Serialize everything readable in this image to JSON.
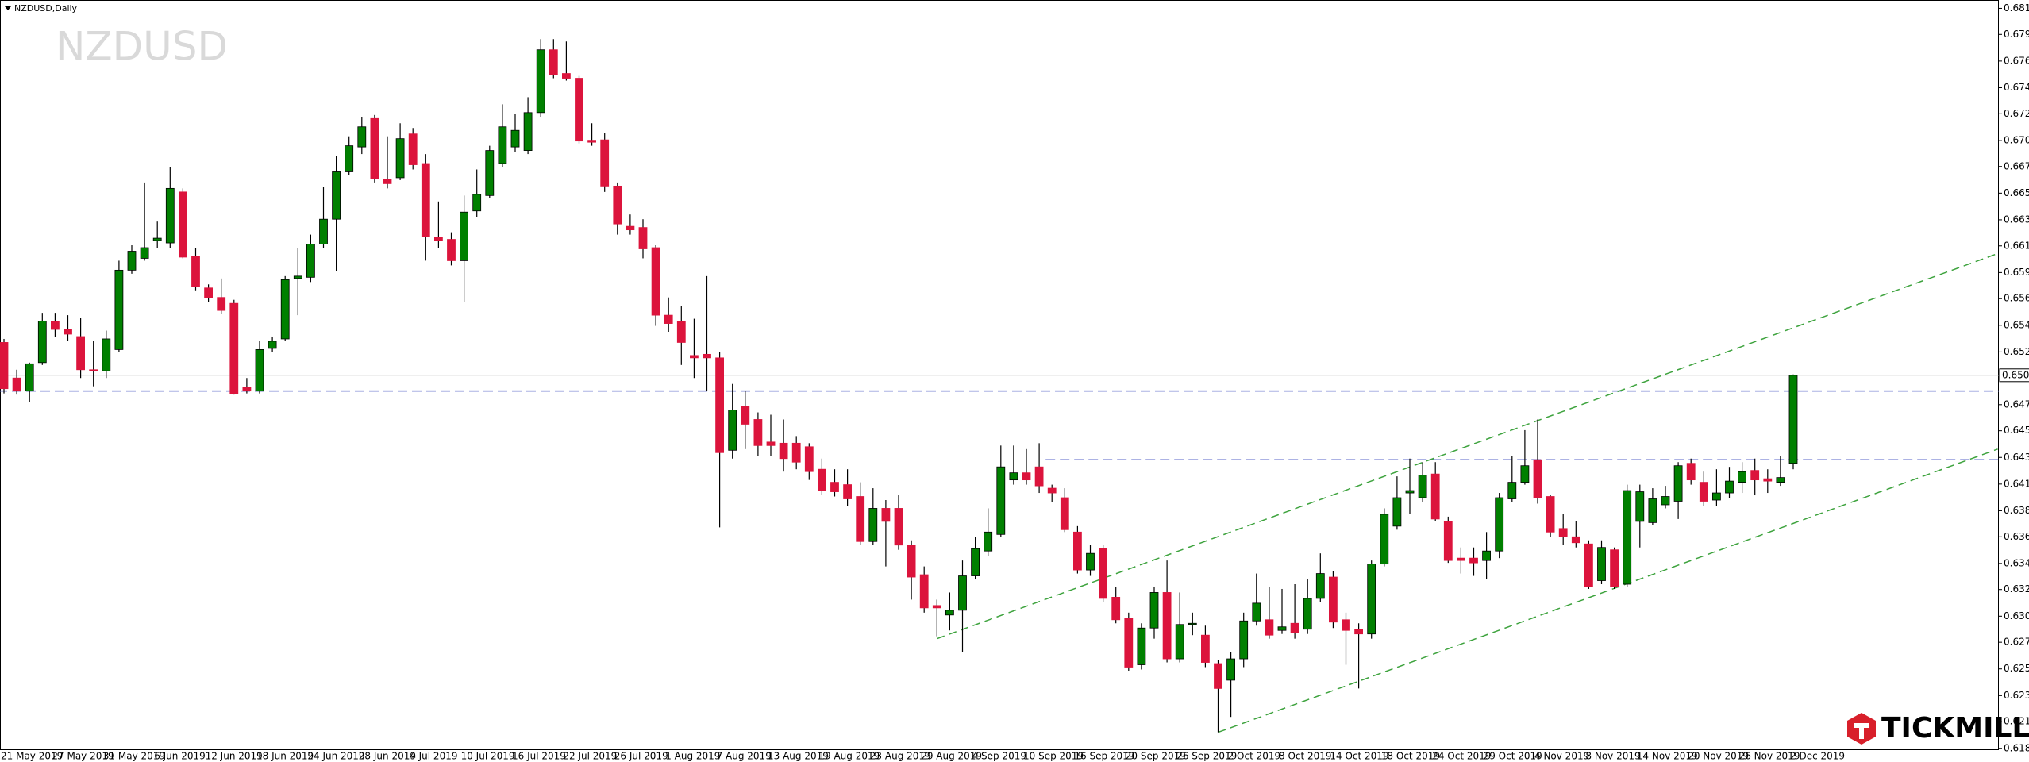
{
  "chart_data": {
    "type": "candlestick",
    "title": "NZDUSD,Daily",
    "watermark": "NZDUSD",
    "brand": "TICKMILL",
    "categories": [
      "21 May 2019",
      null,
      null,
      null,
      "27 May 2019",
      null,
      null,
      null,
      "31 May 2019",
      null,
      null,
      null,
      "6 Jun 2019",
      null,
      null,
      null,
      "12 Jun 2019",
      null,
      null,
      null,
      "18 Jun 2019",
      null,
      null,
      null,
      "24 Jun 2019",
      null,
      null,
      null,
      "28 Jun 2019",
      null,
      null,
      null,
      "4 Jul 2019",
      null,
      null,
      null,
      "10 Jul 2019",
      null,
      null,
      null,
      "16 Jul 2019",
      null,
      null,
      null,
      "22 Jul 2019",
      null,
      null,
      null,
      "26 Jul 2019",
      null,
      null,
      null,
      "1 Aug 2019",
      null,
      null,
      null,
      "7 Aug 2019",
      null,
      null,
      null,
      "13 Aug 2019",
      null,
      null,
      null,
      "19 Aug 2019",
      null,
      null,
      null,
      "23 Aug 2019",
      null,
      null,
      null,
      "29 Aug 2019",
      null,
      null,
      null,
      "4 Sep 2019",
      null,
      null,
      null,
      "10 Sep 2019",
      null,
      null,
      null,
      "16 Sep 2019",
      null,
      null,
      null,
      "20 Sep 2019",
      null,
      null,
      null,
      "26 Sep 2019",
      null,
      null,
      null,
      "2 Oct 2019",
      null,
      null,
      null,
      "8 Oct 2019",
      null,
      null,
      null,
      "14 Oct 2019",
      null,
      null,
      null,
      "18 Oct 2019",
      null,
      null,
      null,
      "24 Oct 2019",
      null,
      null,
      null,
      "29 Oct 2019",
      null,
      null,
      null,
      "4 Nov 2019",
      null,
      null,
      null,
      "8 Nov 2019",
      null,
      null,
      null,
      "14 Nov 2019",
      null,
      null,
      null,
      "20 Nov 2019",
      null,
      null,
      null,
      "26 Nov 2019",
      null,
      null,
      null,
      "2 Dec 2019"
    ],
    "open": [
      0.6531,
      0.6501,
      0.649,
      0.6514,
      0.6549,
      0.6542,
      0.6536,
      0.6508,
      0.6507,
      0.6525,
      0.6592,
      0.6602,
      0.6617,
      0.6615,
      0.6658,
      0.6604,
      0.6577,
      0.6569,
      0.6564,
      0.6493,
      0.649,
      0.6526,
      0.6534,
      0.6585,
      0.6586,
      0.6614,
      0.6635,
      0.6675,
      0.6696,
      0.672,
      0.6669,
      0.667,
      0.6707,
      0.6682,
      0.662,
      0.6618,
      0.66,
      0.6642,
      0.6655,
      0.6682,
      0.6696,
      0.6693,
      0.6725,
      0.6778,
      0.6758,
      0.6754,
      0.6701,
      0.6702,
      0.6663,
      0.6629,
      0.6628,
      0.6611,
      0.6554,
      0.6549,
      0.652,
      0.6521,
      0.6518,
      0.644,
      0.6477,
      0.6466,
      0.6447,
      0.6446,
      0.6446,
      0.6443,
      0.6424,
      0.6413,
      0.6411,
      0.6401,
      0.6363,
      0.6391,
      0.6391,
      0.636,
      0.6335,
      0.6309,
      0.6301,
      0.6305,
      0.6334,
      0.6355,
      0.6369,
      0.6415,
      0.6421,
      0.6426,
      0.6408,
      0.64,
      0.6371,
      0.6339,
      0.6357,
      0.6316,
      0.6298,
      0.6259,
      0.629,
      0.632,
      0.6264,
      0.6294,
      0.6284,
      0.626,
      0.6246,
      0.6264,
      0.6296,
      0.6297,
      0.6288,
      0.6294,
      0.6289,
      0.6315,
      0.6333,
      0.6297,
      0.6289,
      0.6285,
      0.6344,
      0.6376,
      0.6404,
      0.64,
      0.642,
      0.638,
      0.6349,
      0.6349,
      0.6347,
      0.6355,
      0.6399,
      0.6413,
      0.6432,
      0.6401,
      0.6374,
      0.6367,
      0.6361,
      0.633,
      0.6356,
      0.6327,
      0.638,
      0.6379,
      0.6394,
      0.6397,
      0.6429,
      0.6413,
      0.6398,
      0.6404,
      0.6413,
      0.6423,
      0.6416,
      0.6413,
      0.6429
    ],
    "high": [
      0.6534,
      0.6508,
      0.6514,
      0.6556,
      0.6556,
      0.6554,
      0.6552,
      0.6532,
      0.6541,
      0.66,
      0.6613,
      0.6666,
      0.6633,
      0.6679,
      0.6661,
      0.6611,
      0.658,
      0.6585,
      0.6567,
      0.6501,
      0.6532,
      0.6536,
      0.6587,
      0.6611,
      0.6622,
      0.6662,
      0.6688,
      0.6705,
      0.6721,
      0.6723,
      0.6705,
      0.6716,
      0.6712,
      0.669,
      0.665,
      0.6624,
      0.6655,
      0.6677,
      0.6697,
      0.6732,
      0.6724,
      0.6738,
      0.6787,
      0.6787,
      0.6785,
      0.6756,
      0.6716,
      0.6708,
      0.6666,
      0.6639,
      0.6635,
      0.6613,
      0.6569,
      0.6562,
      0.6551,
      0.6587,
      0.6523,
      0.6496,
      0.649,
      0.6472,
      0.647,
      0.6466,
      0.6452,
      0.6446,
      0.6433,
      0.6424,
      0.6424,
      0.6413,
      0.6408,
      0.6398,
      0.6402,
      0.6364,
      0.6342,
      0.6314,
      0.632,
      0.6347,
      0.6367,
      0.6391,
      0.6444,
      0.6444,
      0.6441,
      0.6446,
      0.6411,
      0.6408,
      0.6376,
      0.636,
      0.636,
      0.6325,
      0.6303,
      0.6294,
      0.6325,
      0.6347,
      0.632,
      0.6303,
      0.6292,
      0.6263,
      0.627,
      0.6303,
      0.6336,
      0.6325,
      0.6323,
      0.6327,
      0.6331,
      0.6353,
      0.6338,
      0.6303,
      0.6294,
      0.6347,
      0.6391,
      0.6418,
      0.6433,
      0.643,
      0.643,
      0.6384,
      0.6358,
      0.6358,
      0.6371,
      0.6404,
      0.6435,
      0.6457,
      0.6466,
      0.6402,
      0.6386,
      0.638,
      0.6364,
      0.6364,
      0.6358,
      0.6411,
      0.6411,
      0.6408,
      0.641,
      0.643,
      0.6433,
      0.6422,
      0.6424,
      0.6426,
      0.643,
      0.6433,
      0.6424,
      0.6435,
      0.6504
    ],
    "low": [
      0.6488,
      0.6487,
      0.6481,
      0.6512,
      0.6536,
      0.6532,
      0.6501,
      0.6494,
      0.6501,
      0.6523,
      0.6589,
      0.66,
      0.6611,
      0.6611,
      0.6602,
      0.6575,
      0.6565,
      0.6555,
      0.6487,
      0.6488,
      0.6488,
      0.6523,
      0.6532,
      0.6554,
      0.6582,
      0.6611,
      0.6591,
      0.6672,
      0.669,
      0.6666,
      0.6661,
      0.6668,
      0.6677,
      0.66,
      0.6611,
      0.6596,
      0.6565,
      0.6637,
      0.6653,
      0.6679,
      0.6692,
      0.669,
      0.6721,
      0.6754,
      0.6752,
      0.6699,
      0.6697,
      0.6658,
      0.6622,
      0.6622,
      0.6602,
      0.6545,
      0.654,
      0.6512,
      0.6501,
      0.649,
      0.6375,
      0.6433,
      0.6441,
      0.6435,
      0.6435,
      0.6422,
      0.6424,
      0.6415,
      0.6402,
      0.6401,
      0.6393,
      0.636,
      0.636,
      0.6342,
      0.6356,
      0.6314,
      0.6303,
      0.6283,
      0.6288,
      0.627,
      0.6331,
      0.6351,
      0.6367,
      0.6411,
      0.6411,
      0.6404,
      0.6396,
      0.6371,
      0.6336,
      0.6334,
      0.6312,
      0.6294,
      0.6254,
      0.6255,
      0.6281,
      0.6261,
      0.6261,
      0.6284,
      0.6257,
      0.6202,
      0.6215,
      0.6257,
      0.6292,
      0.6281,
      0.6285,
      0.6281,
      0.6285,
      0.6312,
      0.629,
      0.6259,
      0.6239,
      0.6281,
      0.6342,
      0.6373,
      0.6386,
      0.6396,
      0.638,
      0.6345,
      0.6336,
      0.6334,
      0.6331,
      0.6349,
      0.6396,
      0.6411,
      0.6395,
      0.6367,
      0.636,
      0.6358,
      0.6323,
      0.6327,
      0.6323,
      0.6325,
      0.6358,
      0.6377,
      0.6391,
      0.6382,
      0.6411,
      0.6393,
      0.6393,
      0.64,
      0.6404,
      0.6402,
      0.6404,
      0.641,
      0.6424
    ],
    "close": [
      0.6492,
      0.649,
      0.6513,
      0.6549,
      0.6542,
      0.6538,
      0.6508,
      0.6507,
      0.6534,
      0.6592,
      0.6608,
      0.6611,
      0.6619,
      0.6661,
      0.6603,
      0.6578,
      0.6569,
      0.6558,
      0.6488,
      0.649,
      0.6525,
      0.6532,
      0.6584,
      0.6587,
      0.6614,
      0.6635,
      0.6675,
      0.6697,
      0.6713,
      0.6669,
      0.6665,
      0.6703,
      0.6681,
      0.662,
      0.6617,
      0.66,
      0.6641,
      0.6656,
      0.6693,
      0.6713,
      0.671,
      0.6725,
      0.6778,
      0.6757,
      0.6754,
      0.6701,
      0.67,
      0.6663,
      0.6631,
      0.6626,
      0.661,
      0.6554,
      0.6547,
      0.6531,
      0.6518,
      0.6518,
      0.6438,
      0.6474,
      0.6462,
      0.6444,
      0.6444,
      0.6433,
      0.643,
      0.6422,
      0.6406,
      0.6405,
      0.6399,
      0.6363,
      0.6391,
      0.638,
      0.636,
      0.6333,
      0.6307,
      0.6307,
      0.6305,
      0.6334,
      0.6357,
      0.6371,
      0.6426,
      0.6421,
      0.6415,
      0.641,
      0.6404,
      0.6373,
      0.6339,
      0.6353,
      0.6315,
      0.6297,
      0.6257,
      0.629,
      0.632,
      0.6264,
      0.6293,
      0.6294,
      0.6261,
      0.6239,
      0.6264,
      0.6296,
      0.6311,
      0.6284,
      0.6291,
      0.6286,
      0.6315,
      0.6336,
      0.6295,
      0.6288,
      0.6285,
      0.6344,
      0.6386,
      0.64,
      0.6406,
      0.6419,
      0.6382,
      0.6347,
      0.6347,
      0.6345,
      0.6355,
      0.64,
      0.6413,
      0.6427,
      0.64,
      0.6371,
      0.6367,
      0.6362,
      0.6325,
      0.6358,
      0.6325,
      0.6406,
      0.6405,
      0.6399,
      0.6401,
      0.6427,
      0.6415,
      0.6397,
      0.6404,
      0.6414,
      0.6422,
      0.6415,
      0.6414,
      0.6417,
      0.65033
    ],
    "up_color": "#008000",
    "down_color": "#dc143c",
    "wick_color": "#000000",
    "current_price": 0.65033,
    "hlines": [
      {
        "value": 0.649,
        "from": 0,
        "color": "#5a66c8"
      },
      {
        "value": 0.6432,
        "from": 82,
        "color": "#5a66c8"
      }
    ],
    "trendlines": [
      {
        "x0": 73,
        "y0": 0.6281,
        "x1": 156,
        "y1": 0.6606,
        "color": "#3ea33e"
      },
      {
        "x0": 95,
        "y0": 0.6202,
        "x1": 156,
        "y1": 0.6441,
        "color": "#3ea33e"
      }
    ],
    "ylim": [
      0.6187,
      0.682
    ],
    "yticks": [
      {
        "value": 0.6813,
        "label": "0.68130"
      },
      {
        "value": 0.6791,
        "label": "0.67910"
      },
      0.67685,
      {
        "value": 0.6746,
        "label": "0.67460"
      },
      {
        "value": 0.6724,
        "label": "0.67240"
      },
      0.67015,
      0.66795,
      {
        "value": 0.6657,
        "label": "0.66570"
      },
      0.66345,
      0.66125,
      {
        "value": 0.659,
        "label": "0.65900"
      },
      {
        "value": 0.6568,
        "label": "0.65680"
      },
      0.65455,
      {
        "value": 0.6523,
        "label": "0.65230"
      },
      0.64785,
      0.64565,
      {
        "value": 0.6434,
        "label": "0.64340"
      },
      0.64115,
      {
        "value": 0.6389,
        "label": "0.63890"
      },
      {
        "value": 0.6367,
        "label": "0.63670"
      },
      0.63445,
      0.63225,
      {
        "value": 0.63,
        "label": "0.63000"
      },
      {
        "value": 0.6278,
        "label": "0.62780"
      },
      0.62555,
      {
        "value": 0.6233,
        "label": "0.62330"
      },
      {
        "value": 0.6211,
        "label": "0.62110"
      },
      0.61885
    ]
  }
}
